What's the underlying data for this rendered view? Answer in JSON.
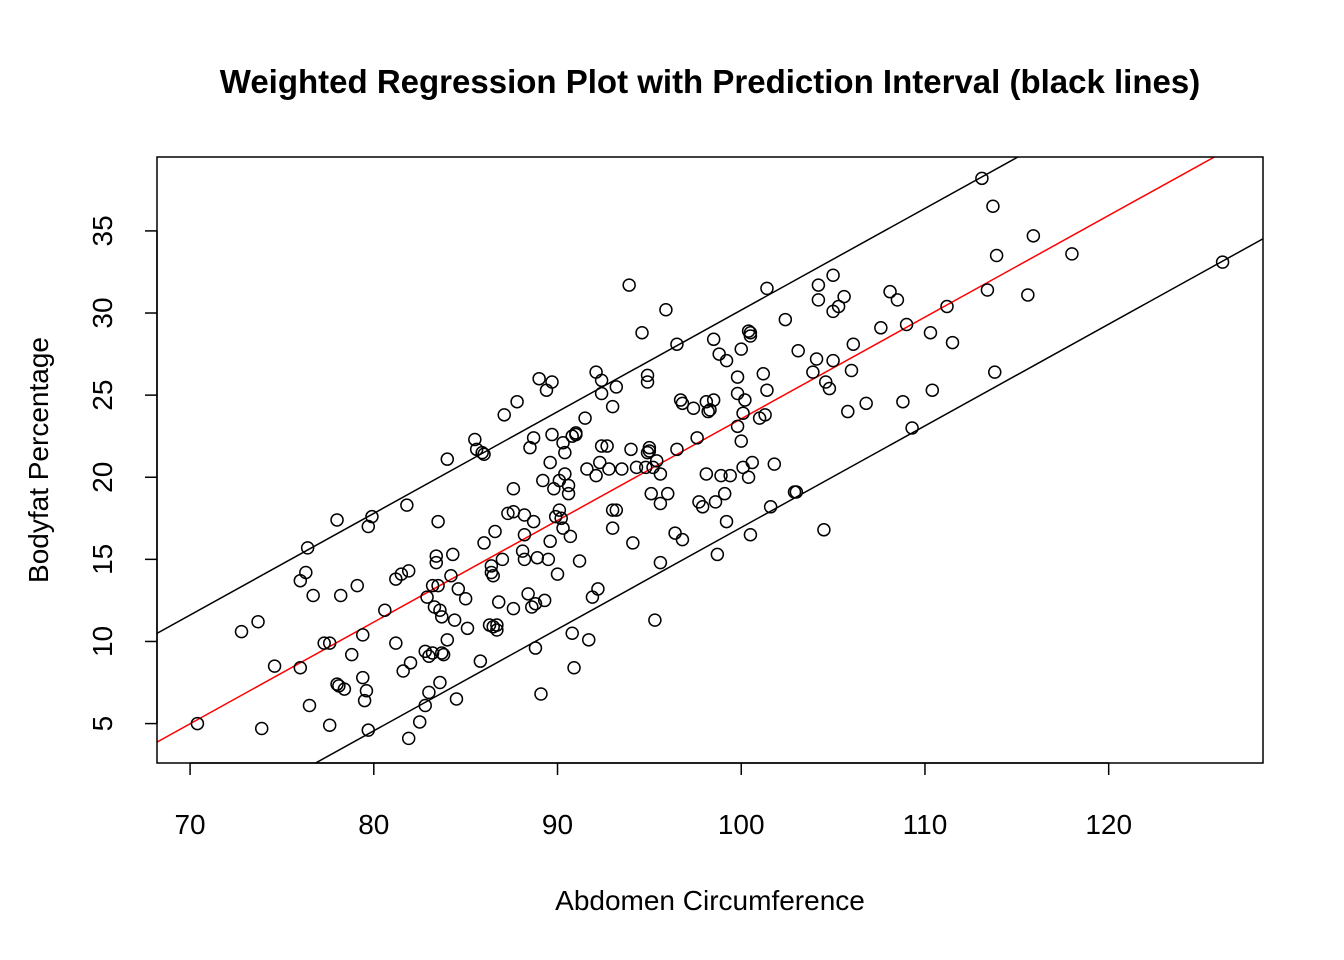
{
  "chart_data": {
    "type": "scatter",
    "title": "Weighted Regression Plot with Prediction Interval (black lines)",
    "xlabel": "Abdomen Circumference",
    "ylabel": "Bodyfat Percentage",
    "xlim": [
      68.2,
      128.4
    ],
    "ylim": [
      2.6,
      39.5
    ],
    "xticks": [
      70,
      80,
      90,
      100,
      110,
      120
    ],
    "yticks": [
      5,
      10,
      15,
      20,
      25,
      30,
      35
    ],
    "grid": false,
    "point_color": "#000000",
    "fit_line": {
      "name": "",
      "color": "#ff0000",
      "intercept": -38.34,
      "slope": 0.619
    },
    "prediction_interval": {
      "color": "#000000",
      "upper_intercept": -31.72,
      "lower_intercept": -44.96,
      "slope": 0.619
    },
    "points": [
      [
        70.4,
        5.0
      ],
      [
        72.8,
        10.6
      ],
      [
        73.7,
        11.2
      ],
      [
        73.9,
        4.7
      ],
      [
        74.6,
        8.5
      ],
      [
        76.0,
        8.4
      ],
      [
        76.0,
        13.7
      ],
      [
        76.3,
        14.2
      ],
      [
        76.4,
        15.7
      ],
      [
        76.5,
        6.1
      ],
      [
        76.7,
        12.8
      ],
      [
        77.3,
        9.9
      ],
      [
        77.6,
        9.9
      ],
      [
        77.6,
        4.9
      ],
      [
        78.0,
        7.4
      ],
      [
        78.0,
        17.4
      ],
      [
        78.1,
        7.3
      ],
      [
        78.2,
        12.8
      ],
      [
        78.4,
        7.1
      ],
      [
        78.8,
        9.2
      ],
      [
        79.1,
        13.4
      ],
      [
        79.4,
        10.4
      ],
      [
        79.4,
        7.8
      ],
      [
        79.5,
        6.4
      ],
      [
        79.6,
        7.0
      ],
      [
        79.7,
        4.6
      ],
      [
        79.7,
        17.0
      ],
      [
        79.9,
        17.6
      ],
      [
        80.6,
        11.9
      ],
      [
        81.2,
        9.9
      ],
      [
        81.2,
        13.8
      ],
      [
        81.5,
        14.1
      ],
      [
        81.6,
        8.2
      ],
      [
        81.8,
        18.3
      ],
      [
        81.9,
        14.3
      ],
      [
        81.9,
        4.1
      ],
      [
        82.0,
        8.7
      ],
      [
        82.5,
        5.1
      ],
      [
        82.8,
        9.4
      ],
      [
        82.8,
        6.1
      ],
      [
        82.9,
        12.7
      ],
      [
        83.0,
        9.1
      ],
      [
        83.0,
        6.9
      ],
      [
        83.2,
        9.3
      ],
      [
        83.2,
        13.4
      ],
      [
        83.3,
        12.1
      ],
      [
        83.4,
        15.2
      ],
      [
        83.4,
        14.8
      ],
      [
        83.5,
        17.3
      ],
      [
        83.5,
        13.4
      ],
      [
        83.6,
        7.5
      ],
      [
        83.6,
        11.9
      ],
      [
        83.7,
        9.3
      ],
      [
        83.7,
        11.5
      ],
      [
        83.8,
        9.2
      ],
      [
        84.0,
        21.1
      ],
      [
        84.0,
        10.1
      ],
      [
        84.2,
        14.0
      ],
      [
        84.3,
        15.3
      ],
      [
        84.4,
        11.3
      ],
      [
        84.5,
        6.5
      ],
      [
        84.6,
        13.2
      ],
      [
        85.0,
        12.6
      ],
      [
        85.1,
        10.8
      ],
      [
        85.5,
        22.3
      ],
      [
        85.6,
        21.7
      ],
      [
        85.8,
        8.8
      ],
      [
        85.9,
        21.5
      ],
      [
        86.0,
        21.4
      ],
      [
        86.0,
        16.0
      ],
      [
        86.3,
        11.0
      ],
      [
        86.4,
        14.2
      ],
      [
        86.4,
        14.6
      ],
      [
        86.5,
        10.9
      ],
      [
        86.5,
        14.0
      ],
      [
        86.6,
        16.7
      ],
      [
        86.7,
        10.7
      ],
      [
        86.8,
        12.4
      ],
      [
        86.7,
        11.0
      ],
      [
        87.0,
        15.0
      ],
      [
        87.1,
        23.8
      ],
      [
        87.3,
        17.8
      ],
      [
        87.6,
        17.9
      ],
      [
        87.6,
        19.3
      ],
      [
        87.6,
        12.0
      ],
      [
        87.8,
        24.6
      ],
      [
        88.1,
        15.5
      ],
      [
        88.2,
        17.7
      ],
      [
        88.2,
        16.5
      ],
      [
        88.2,
        15.0
      ],
      [
        88.4,
        12.9
      ],
      [
        88.5,
        21.8
      ],
      [
        88.6,
        12.1
      ],
      [
        88.7,
        22.4
      ],
      [
        88.7,
        17.3
      ],
      [
        88.8,
        12.3
      ],
      [
        88.8,
        9.6
      ],
      [
        88.9,
        15.1
      ],
      [
        89.0,
        26.0
      ],
      [
        89.1,
        6.8
      ],
      [
        89.2,
        19.8
      ],
      [
        89.3,
        12.5
      ],
      [
        89.4,
        25.3
      ],
      [
        89.5,
        15.0
      ],
      [
        89.6,
        20.9
      ],
      [
        89.6,
        16.1
      ],
      [
        89.7,
        25.8
      ],
      [
        89.7,
        22.6
      ],
      [
        89.8,
        19.3
      ],
      [
        89.9,
        17.6
      ],
      [
        90.0,
        14.1
      ],
      [
        90.1,
        19.8
      ],
      [
        90.1,
        18.0
      ],
      [
        90.2,
        17.5
      ],
      [
        90.3,
        16.9
      ],
      [
        90.3,
        22.1
      ],
      [
        90.4,
        21.5
      ],
      [
        90.4,
        20.2
      ],
      [
        90.6,
        19.0
      ],
      [
        90.6,
        19.5
      ],
      [
        90.7,
        16.4
      ],
      [
        90.8,
        10.5
      ],
      [
        90.8,
        22.5
      ],
      [
        90.9,
        8.4
      ],
      [
        91.0,
        22.6
      ],
      [
        91.0,
        22.7
      ],
      [
        91.2,
        14.9
      ],
      [
        91.5,
        23.6
      ],
      [
        91.6,
        20.5
      ],
      [
        91.7,
        10.1
      ],
      [
        91.9,
        12.7
      ],
      [
        92.1,
        20.1
      ],
      [
        92.1,
        26.4
      ],
      [
        92.2,
        13.2
      ],
      [
        92.3,
        20.9
      ],
      [
        92.4,
        21.9
      ],
      [
        92.4,
        25.1
      ],
      [
        92.4,
        25.9
      ],
      [
        92.7,
        21.9
      ],
      [
        92.8,
        20.5
      ],
      [
        93.0,
        16.9
      ],
      [
        93.0,
        24.3
      ],
      [
        93.0,
        18.0
      ],
      [
        93.2,
        18.0
      ],
      [
        93.2,
        25.5
      ],
      [
        93.5,
        20.5
      ],
      [
        93.9,
        31.7
      ],
      [
        94.0,
        21.7
      ],
      [
        94.1,
        16.0
      ],
      [
        94.3,
        20.6
      ],
      [
        94.6,
        28.8
      ],
      [
        94.8,
        20.6
      ],
      [
        94.9,
        26.2
      ],
      [
        94.9,
        25.8
      ],
      [
        94.9,
        21.5
      ],
      [
        95.0,
        21.8
      ],
      [
        95.0,
        21.6
      ],
      [
        95.1,
        19.0
      ],
      [
        95.2,
        20.6
      ],
      [
        95.3,
        11.3
      ],
      [
        95.4,
        21.0
      ],
      [
        95.6,
        20.2
      ],
      [
        95.6,
        18.4
      ],
      [
        95.6,
        14.8
      ],
      [
        95.9,
        30.2
      ],
      [
        96.0,
        19.0
      ],
      [
        96.4,
        16.6
      ],
      [
        96.5,
        28.1
      ],
      [
        96.5,
        21.7
      ],
      [
        96.7,
        24.7
      ],
      [
        96.8,
        24.5
      ],
      [
        96.8,
        16.2
      ],
      [
        97.4,
        24.2
      ],
      [
        97.6,
        22.4
      ],
      [
        97.7,
        18.5
      ],
      [
        97.9,
        18.2
      ],
      [
        98.1,
        20.2
      ],
      [
        98.1,
        24.6
      ],
      [
        98.2,
        24.0
      ],
      [
        98.3,
        24.1
      ],
      [
        98.5,
        24.7
      ],
      [
        98.5,
        28.4
      ],
      [
        98.6,
        18.5
      ],
      [
        98.7,
        15.3
      ],
      [
        98.8,
        27.5
      ],
      [
        98.9,
        20.1
      ],
      [
        99.1,
        19.0
      ],
      [
        99.2,
        27.1
      ],
      [
        99.2,
        17.3
      ],
      [
        99.4,
        20.1
      ],
      [
        99.8,
        25.1
      ],
      [
        99.8,
        26.1
      ],
      [
        99.8,
        23.1
      ],
      [
        100.0,
        27.8
      ],
      [
        100.0,
        22.2
      ],
      [
        100.1,
        20.6
      ],
      [
        100.1,
        23.9
      ],
      [
        100.2,
        24.7
      ],
      [
        100.4,
        28.9
      ],
      [
        100.4,
        20.0
      ],
      [
        100.5,
        16.5
      ],
      [
        100.5,
        28.6
      ],
      [
        100.5,
        28.8
      ],
      [
        100.6,
        20.9
      ],
      [
        101.0,
        23.6
      ],
      [
        101.2,
        26.3
      ],
      [
        101.3,
        23.8
      ],
      [
        101.4,
        25.3
      ],
      [
        101.4,
        31.5
      ],
      [
        101.6,
        18.2
      ],
      [
        101.8,
        20.8
      ],
      [
        102.4,
        29.6
      ],
      [
        102.9,
        19.1
      ],
      [
        103.0,
        19.1
      ],
      [
        103.1,
        27.7
      ],
      [
        103.9,
        26.4
      ],
      [
        104.1,
        27.2
      ],
      [
        104.2,
        31.7
      ],
      [
        104.2,
        30.8
      ],
      [
        104.5,
        16.8
      ],
      [
        104.6,
        25.8
      ],
      [
        104.8,
        25.4
      ],
      [
        105.0,
        30.1
      ],
      [
        105.0,
        32.3
      ],
      [
        105.0,
        27.1
      ],
      [
        105.3,
        30.4
      ],
      [
        105.6,
        31.0
      ],
      [
        105.8,
        24.0
      ],
      [
        106.0,
        26.5
      ],
      [
        106.1,
        28.1
      ],
      [
        106.8,
        24.5
      ],
      [
        107.6,
        29.1
      ],
      [
        108.1,
        31.3
      ],
      [
        108.5,
        30.8
      ],
      [
        108.8,
        24.6
      ],
      [
        109.0,
        29.3
      ],
      [
        109.3,
        23.0
      ],
      [
        110.3,
        28.8
      ],
      [
        110.4,
        25.3
      ],
      [
        111.2,
        30.4
      ],
      [
        111.5,
        28.2
      ],
      [
        113.1,
        38.2
      ],
      [
        113.4,
        31.4
      ],
      [
        113.7,
        36.5
      ],
      [
        113.8,
        26.4
      ],
      [
        113.9,
        33.5
      ],
      [
        115.6,
        31.1
      ],
      [
        115.9,
        34.7
      ],
      [
        118.0,
        33.6
      ],
      [
        126.2,
        33.1
      ]
    ]
  }
}
